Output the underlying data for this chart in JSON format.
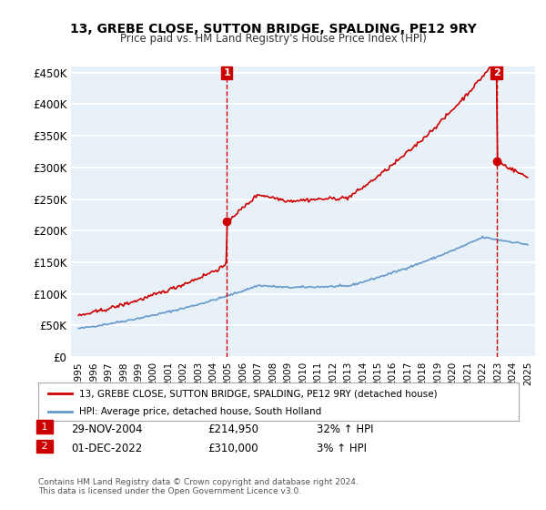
{
  "title": "13, GREBE CLOSE, SUTTON BRIDGE, SPALDING, PE12 9RY",
  "subtitle": "Price paid vs. HM Land Registry's House Price Index (HPI)",
  "legend_line1": "13, GREBE CLOSE, SUTTON BRIDGE, SPALDING, PE12 9RY (detached house)",
  "legend_line2": "HPI: Average price, detached house, South Holland",
  "annotation1_box": "1",
  "annotation1_date": "29-NOV-2004",
  "annotation1_price": "£214,950",
  "annotation1_hpi": "32% ↑ HPI",
  "annotation2_box": "2",
  "annotation2_date": "01-DEC-2022",
  "annotation2_price": "£310,000",
  "annotation2_hpi": "3% ↑ HPI",
  "footnote": "Contains HM Land Registry data © Crown copyright and database right 2024.\nThis data is licensed under the Open Government Licence v3.0.",
  "ylim": [
    0,
    460000
  ],
  "yticks": [
    0,
    50000,
    100000,
    150000,
    200000,
    250000,
    300000,
    350000,
    400000,
    450000
  ],
  "ytick_labels": [
    "£0",
    "£50K",
    "£100K",
    "£150K",
    "£200K",
    "£250K",
    "£300K",
    "£350K",
    "£400K",
    "£450K"
  ],
  "sale1_year": 2004.91,
  "sale1_price": 214950,
  "sale2_year": 2022.92,
  "sale2_price": 310000,
  "line_color_red": "#cc0000",
  "line_color_blue": "#6699cc",
  "background_color": "#e8f0f8",
  "plot_bg_color": "#e8f0f8",
  "grid_color": "#ffffff",
  "annotation_box_color": "#cc0000"
}
